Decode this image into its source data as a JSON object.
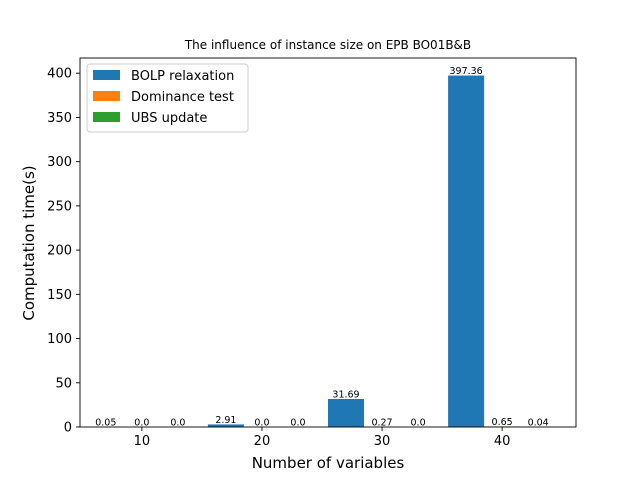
{
  "chart_data": {
    "type": "bar",
    "title": "The influence of instance size on EPB BO01B&B",
    "xlabel": "Number of variables",
    "ylabel": "Computation time(s)",
    "categories": [
      "10",
      "20",
      "30",
      "40"
    ],
    "x_values": [
      10,
      20,
      30,
      40
    ],
    "xlim": [
      4.85,
      46.15
    ],
    "ylim": [
      0,
      417.2
    ],
    "yticks": [
      0,
      50,
      100,
      150,
      200,
      250,
      300,
      350,
      400
    ],
    "series": [
      {
        "name": "BOLP relaxation",
        "color": "#1f77b4",
        "values": [
          0.05,
          2.91,
          31.69,
          397.36
        ],
        "labels": [
          "0.05",
          "2.91",
          "31.69",
          "397.36"
        ]
      },
      {
        "name": "Dominance test",
        "color": "#ff7f0e",
        "values": [
          0.0,
          0.0,
          0.27,
          0.65
        ],
        "labels": [
          "0.0",
          "0.0",
          "0.27",
          "0.65"
        ]
      },
      {
        "name": "UBS update",
        "color": "#2ca02c",
        "values": [
          0.0,
          0.0,
          0.0,
          0.04
        ],
        "labels": [
          "0.0",
          "0.0",
          "0.0",
          "0.04"
        ]
      }
    ],
    "legend": "top-left",
    "grid": false
  }
}
